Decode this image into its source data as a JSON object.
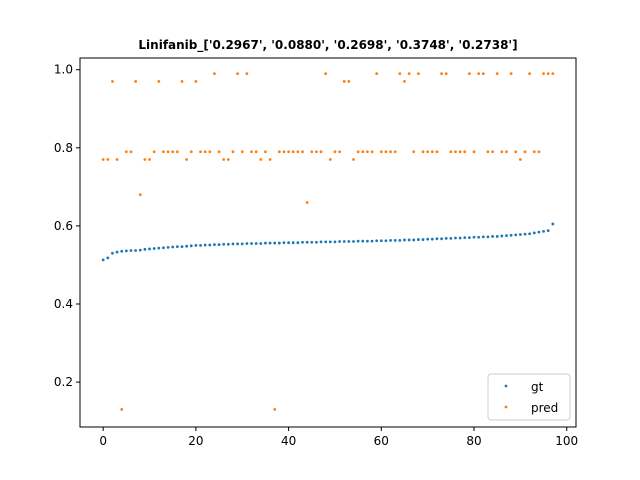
{
  "chart_data": {
    "type": "scatter",
    "title": "Linifanib_['0.2967', '0.0880', '0.2698', '0.3748', '0.2738']",
    "xlabel": "",
    "ylabel": "",
    "xlim": [
      -5,
      102
    ],
    "ylim": [
      0.085,
      1.03
    ],
    "xticks": [
      0,
      20,
      40,
      60,
      80,
      100
    ],
    "yticks": [
      0.2,
      0.4,
      0.6,
      0.8,
      1.0
    ],
    "xtick_labels": [
      "0",
      "20",
      "40",
      "60",
      "80",
      "100"
    ],
    "ytick_labels": [
      "0.2",
      "0.4",
      "0.6",
      "0.8",
      "1.0"
    ],
    "grid": false,
    "legend_position": "lower-right",
    "series": [
      {
        "name": "gt",
        "color": "#1f77b4",
        "y": [
          0.513,
          0.518,
          0.53,
          0.533,
          0.535,
          0.536,
          0.537,
          0.537,
          0.538,
          0.54,
          0.541,
          0.542,
          0.543,
          0.544,
          0.545,
          0.546,
          0.547,
          0.547,
          0.548,
          0.549,
          0.55,
          0.55,
          0.551,
          0.551,
          0.552,
          0.552,
          0.553,
          0.553,
          0.554,
          0.554,
          0.554,
          0.555,
          0.555,
          0.555,
          0.555,
          0.556,
          0.556,
          0.556,
          0.556,
          0.557,
          0.557,
          0.557,
          0.557,
          0.558,
          0.558,
          0.558,
          0.558,
          0.559,
          0.559,
          0.559,
          0.559,
          0.56,
          0.56,
          0.56,
          0.56,
          0.561,
          0.561,
          0.561,
          0.561,
          0.562,
          0.562,
          0.562,
          0.563,
          0.563,
          0.563,
          0.564,
          0.564,
          0.564,
          0.565,
          0.565,
          0.566,
          0.566,
          0.567,
          0.567,
          0.568,
          0.568,
          0.569,
          0.569,
          0.57,
          0.57,
          0.571,
          0.571,
          0.572,
          0.572,
          0.573,
          0.573,
          0.574,
          0.575,
          0.576,
          0.577,
          0.578,
          0.579,
          0.58,
          0.582,
          0.584,
          0.586,
          0.588,
          0.605
        ]
      },
      {
        "name": "pred",
        "color": "#ff7f0e",
        "y": [
          0.77,
          0.77,
          0.97,
          0.77,
          0.13,
          0.79,
          0.79,
          0.97,
          0.68,
          0.77,
          0.77,
          0.79,
          0.97,
          0.79,
          0.79,
          0.79,
          0.79,
          0.97,
          0.77,
          0.79,
          0.97,
          0.79,
          0.79,
          0.79,
          0.99,
          0.79,
          0.77,
          0.77,
          0.79,
          0.99,
          0.79,
          0.99,
          0.79,
          0.79,
          0.77,
          0.79,
          0.77,
          0.13,
          0.79,
          0.79,
          0.79,
          0.79,
          0.79,
          0.79,
          0.66,
          0.79,
          0.79,
          0.79,
          0.99,
          0.77,
          0.79,
          0.79,
          0.97,
          0.97,
          0.77,
          0.79,
          0.79,
          0.79,
          0.79,
          0.99,
          0.79,
          0.79,
          0.79,
          0.79,
          0.99,
          0.97,
          0.99,
          0.79,
          0.99,
          0.79,
          0.79,
          0.79,
          0.79,
          0.99,
          0.99,
          0.79,
          0.79,
          0.79,
          0.79,
          0.99,
          0.79,
          0.99,
          0.99,
          0.79,
          0.79,
          0.99,
          0.79,
          0.79,
          0.99,
          0.79,
          0.77,
          0.79,
          0.99,
          0.79,
          0.79,
          0.99,
          0.99,
          0.99
        ]
      }
    ]
  }
}
